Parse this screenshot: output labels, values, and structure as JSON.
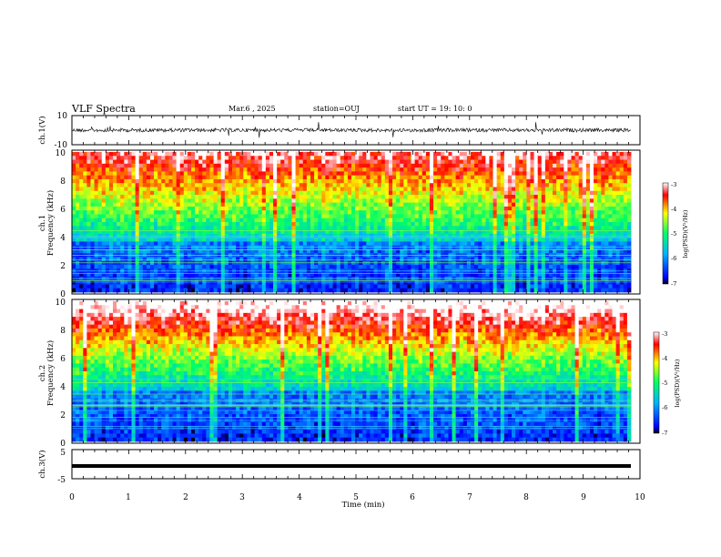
{
  "header": {
    "title": "VLF Spectra",
    "date": "Mar.6 , 2025",
    "station": "station=OUJ",
    "start": "start UT = 19: 10: 0"
  },
  "chart_data": [
    {
      "type": "line",
      "panel": "ch1-waveform",
      "ylabel": "ch.1(V)",
      "ylim": [
        -10,
        10
      ],
      "yticks": [
        "10",
        "-10"
      ],
      "x_range_min": [
        0,
        10
      ],
      "trace_color": "#000000"
    },
    {
      "type": "heatmap",
      "panel": "ch1-spectrogram",
      "ylabel_line1": "ch.1",
      "ylabel_line2": "Frequency (kHz)",
      "ylim": [
        0,
        10
      ],
      "yticks": [
        "0",
        "2",
        "4",
        "6",
        "8",
        "10"
      ],
      "colorbar": {
        "label": "log(PSD)(V²/Hz)",
        "range": [
          -7,
          -3
        ],
        "ticks": [
          "-3",
          "-4",
          "-5",
          "-6",
          "-7"
        ],
        "colors": [
          "#000000",
          "#0000ff",
          "#00c0ff",
          "#00ff80",
          "#ffff00",
          "#ff0000",
          "#ffffff"
        ]
      }
    },
    {
      "type": "heatmap",
      "panel": "ch2-spectrogram",
      "ylabel_line1": "ch.2",
      "ylabel_line2": "Frequency (kHz)",
      "ylim": [
        0,
        10
      ],
      "yticks": [
        "0",
        "2",
        "4",
        "6",
        "8",
        "10"
      ],
      "colorbar": {
        "label": "log(PSD)(V²/Hz)",
        "range": [
          -7,
          -3
        ],
        "ticks": [
          "-3",
          "-4",
          "-5",
          "-6",
          "-7"
        ]
      }
    },
    {
      "type": "line",
      "panel": "ch3-waveform",
      "ylabel": "ch.3(V)",
      "ylim": [
        -5,
        5
      ],
      "yticks": [
        "5",
        "-5"
      ],
      "series": [
        {
          "values": [
            -2.5,
            -2.5
          ]
        }
      ]
    }
  ],
  "xaxis": {
    "label": "Time (min)",
    "xlim": [
      0,
      10
    ],
    "ticks": [
      "0",
      "1",
      "2",
      "3",
      "4",
      "5",
      "6",
      "7",
      "8",
      "9",
      "10"
    ]
  }
}
